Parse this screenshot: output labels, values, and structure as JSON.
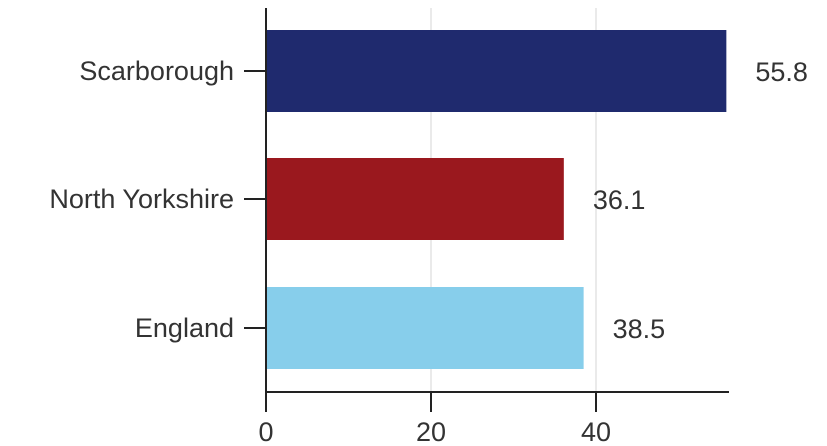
{
  "chart_data": {
    "type": "bar",
    "orientation": "horizontal",
    "title": "",
    "xlabel": "",
    "ylabel": "",
    "categories": [
      "Scarborough",
      "North Yorkshire",
      "England"
    ],
    "values": [
      55.8,
      36.1,
      38.5
    ],
    "value_labels": [
      "55.8",
      "36.1",
      "38.5"
    ],
    "colors": [
      "#1f2a6e",
      "#9a181e",
      "#87ceeb"
    ],
    "xlim": [
      0,
      56
    ],
    "xticks": [
      0,
      20,
      40
    ],
    "xtick_labels": [
      "0",
      "20",
      "40"
    ],
    "grid": "vertical",
    "legend": "none"
  }
}
